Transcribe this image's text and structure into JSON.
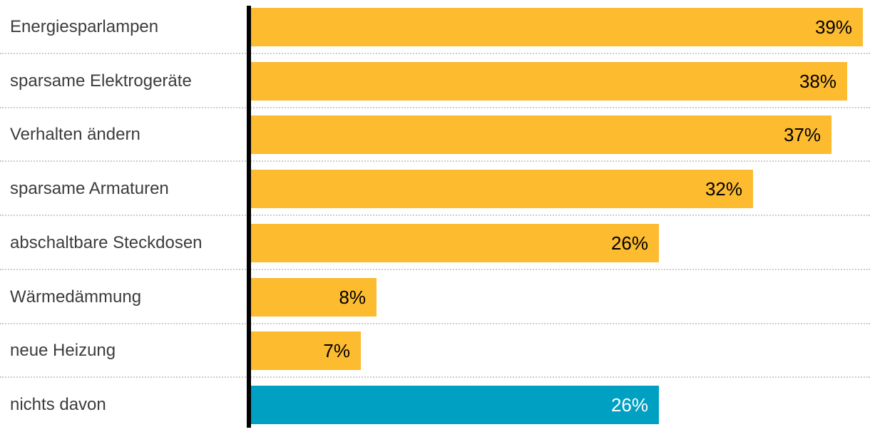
{
  "chart_data": {
    "type": "bar",
    "orientation": "horizontal",
    "title": "",
    "xlabel": "",
    "ylabel": "",
    "unit": "%",
    "xlim": [
      0,
      39.5
    ],
    "grid": "dotted-horizontal-row-separators",
    "legend": "none",
    "axis": "thick black vertical baseline at zero, no ticks, no tick labels",
    "categories": [
      "Energiesparlampen",
      "sparsame Elektrogeräte",
      "Verhalten ändern",
      "sparsame Armaturen",
      "abschaltbare Steckdosen",
      "Wärmedämmung",
      "neue Heizung",
      "nichts davon"
    ],
    "values": [
      39,
      38,
      37,
      32,
      26,
      8,
      7,
      26
    ],
    "colors": {
      "bar_default": "#FDBB30",
      "bar_highlight": "#00A0C2",
      "axis_line": "#000000",
      "category_text": "#3C3C3C",
      "value_text_on_default": "#000000",
      "value_text_on_highlight": "#FFFFFF",
      "separator": "#CDCDCD",
      "background": "#FFFFFF"
    },
    "rows": [
      {
        "label": "Energiesparlampen",
        "value": 39,
        "value_label": "39%",
        "color": "#FDBB30",
        "text_color": "#000000"
      },
      {
        "label": "sparsame Elektrogeräte",
        "value": 38,
        "value_label": "38%",
        "color": "#FDBB30",
        "text_color": "#000000"
      },
      {
        "label": "Verhalten ändern",
        "value": 37,
        "value_label": "37%",
        "color": "#FDBB30",
        "text_color": "#000000"
      },
      {
        "label": "sparsame Armaturen",
        "value": 32,
        "value_label": "32%",
        "color": "#FDBB30",
        "text_color": "#000000"
      },
      {
        "label": "abschaltbare Steckdosen",
        "value": 26,
        "value_label": "26%",
        "color": "#FDBB30",
        "text_color": "#000000"
      },
      {
        "label": "Wärmedämmung",
        "value": 8,
        "value_label": "8%",
        "color": "#FDBB30",
        "text_color": "#000000"
      },
      {
        "label": "neue Heizung",
        "value": 7,
        "value_label": "7%",
        "color": "#FDBB30",
        "text_color": "#000000"
      },
      {
        "label": "nichts davon",
        "value": 26,
        "value_label": "26%",
        "color": "#00A0C2",
        "text_color": "#FFFFFF"
      }
    ]
  }
}
